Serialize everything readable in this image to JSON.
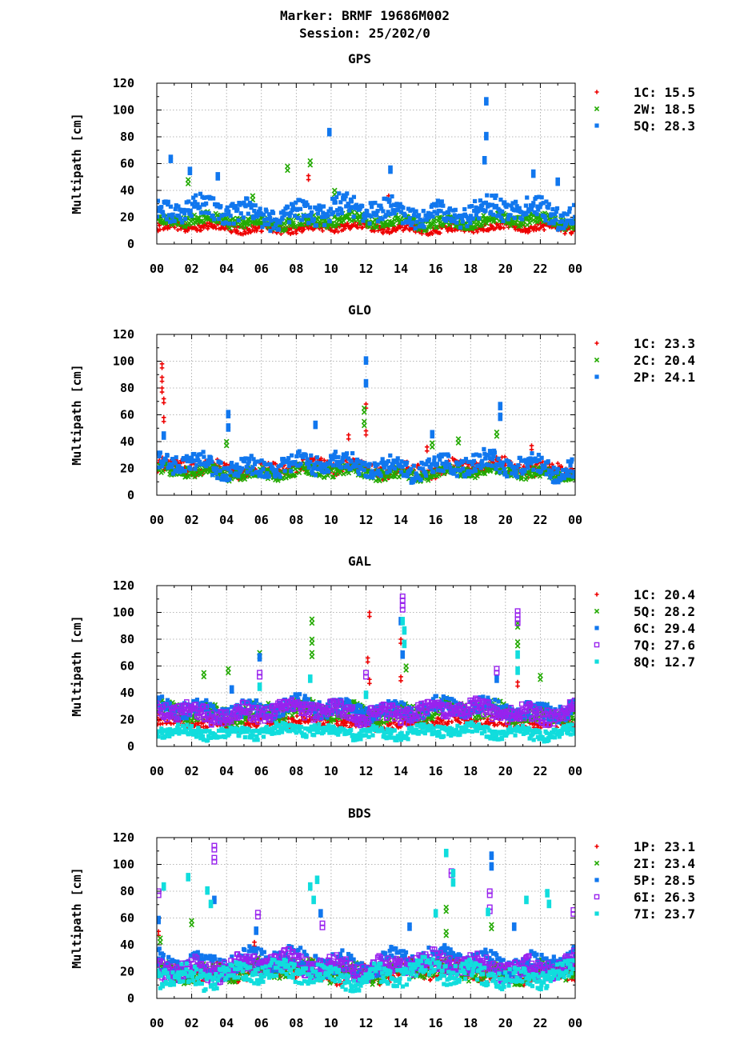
{
  "header": {
    "line1": "Marker: BRMF 19686M002",
    "line2": "Session: 25/202/0"
  },
  "colors": {
    "red": "#ee0000",
    "green": "#22aa00",
    "blue": "#1177ee",
    "purple": "#9922ee",
    "cyan": "#11dddd"
  },
  "chart_data": [
    {
      "type": "scatter",
      "title": "GPS",
      "ylabel": "Multipath [cm]",
      "xlabel": "",
      "xlim": [
        0,
        24
      ],
      "ylim": [
        0,
        120
      ],
      "x_ticks": [
        "00",
        "02",
        "04",
        "06",
        "08",
        "10",
        "12",
        "14",
        "16",
        "18",
        "20",
        "22",
        "00"
      ],
      "y_ticks": [
        "0",
        "20",
        "40",
        "60",
        "80",
        "100",
        "120"
      ],
      "grid": true,
      "legend_position": "right",
      "series": [
        {
          "name": "1C",
          "value": "15.5",
          "color": "#ee0000",
          "marker": "plus",
          "base": 12,
          "spread": 3,
          "spikes": [
            [
              8.7,
              51
            ],
            [
              13.3,
              36
            ],
            [
              1.6,
              14
            ]
          ]
        },
        {
          "name": "2W",
          "value": "18.5",
          "color": "#22aa00",
          "marker": "cross",
          "base": 17,
          "spread": 4,
          "spikes": [
            [
              7.5,
              58
            ],
            [
              8.8,
              62
            ],
            [
              10.2,
              40
            ],
            [
              5.5,
              36
            ],
            [
              1.8,
              48
            ]
          ]
        },
        {
          "name": "5Q",
          "value": "28.3",
          "color": "#1177ee",
          "marker": "square",
          "base": 24,
          "spread": 8,
          "spikes": [
            [
              0.8,
              65
            ],
            [
              9.9,
              85
            ],
            [
              18.9,
              108
            ],
            [
              18.9,
              82
            ],
            [
              18.8,
              64
            ],
            [
              13.4,
              57
            ],
            [
              1.9,
              56
            ],
            [
              3.5,
              52
            ],
            [
              21.6,
              54
            ],
            [
              23.0,
              48
            ]
          ]
        }
      ]
    },
    {
      "type": "scatter",
      "title": "GLO",
      "ylabel": "Multipath [cm]",
      "xlabel": "",
      "xlim": [
        0,
        24
      ],
      "ylim": [
        0,
        120
      ],
      "x_ticks": [
        "00",
        "02",
        "04",
        "06",
        "08",
        "10",
        "12",
        "14",
        "16",
        "18",
        "20",
        "22",
        "00"
      ],
      "y_ticks": [
        "0",
        "20",
        "40",
        "60",
        "80",
        "100",
        "120"
      ],
      "grid": true,
      "legend_position": "right",
      "series": [
        {
          "name": "1C",
          "value": "23.3",
          "color": "#ee0000",
          "marker": "plus",
          "base": 20,
          "spread": 5,
          "spikes": [
            [
              0.3,
              98
            ],
            [
              0.3,
              88
            ],
            [
              0.3,
              80
            ],
            [
              0.4,
              72
            ],
            [
              0.4,
              58
            ],
            [
              11.0,
              45
            ],
            [
              12.0,
              68
            ],
            [
              12.0,
              48
            ],
            [
              15.5,
              36
            ],
            [
              21.5,
              37
            ]
          ]
        },
        {
          "name": "2C",
          "value": "20.4",
          "color": "#22aa00",
          "marker": "cross",
          "base": 17,
          "spread": 4,
          "spikes": [
            [
              4.0,
              40
            ],
            [
              11.9,
              65
            ],
            [
              11.9,
              55
            ],
            [
              19.5,
              47
            ],
            [
              15.8,
              39
            ],
            [
              17.3,
              42
            ]
          ]
        },
        {
          "name": "2P",
          "value": "24.1",
          "color": "#1177ee",
          "marker": "square",
          "base": 22,
          "spread": 7,
          "spikes": [
            [
              0.4,
              46
            ],
            [
              4.1,
              62
            ],
            [
              4.1,
              52
            ],
            [
              9.1,
              54
            ],
            [
              12.0,
              102
            ],
            [
              12.0,
              85
            ],
            [
              15.8,
              47
            ],
            [
              19.7,
              68
            ],
            [
              19.7,
              60
            ]
          ]
        }
      ]
    },
    {
      "type": "scatter",
      "title": "GAL",
      "ylabel": "Multipath [cm]",
      "xlabel": "",
      "xlim": [
        0,
        24
      ],
      "ylim": [
        0,
        120
      ],
      "x_ticks": [
        "00",
        "02",
        "04",
        "06",
        "08",
        "10",
        "12",
        "14",
        "16",
        "18",
        "20",
        "22",
        "00"
      ],
      "y_ticks": [
        "0",
        "20",
        "40",
        "60",
        "80",
        "100",
        "120"
      ],
      "grid": true,
      "legend_position": "right",
      "series": [
        {
          "name": "1C",
          "value": "20.4",
          "color": "#ee0000",
          "marker": "plus",
          "base": 18,
          "spread": 4,
          "spikes": [
            [
              12.2,
              100
            ],
            [
              12.1,
              66
            ],
            [
              12.2,
              50
            ],
            [
              14.0,
              80
            ],
            [
              14.0,
              52
            ],
            [
              20.7,
              48
            ]
          ]
        },
        {
          "name": "5Q",
          "value": "28.2",
          "color": "#22aa00",
          "marker": "cross",
          "base": 26,
          "spread": 6,
          "spikes": [
            [
              2.7,
              55
            ],
            [
              8.9,
              95
            ],
            [
              8.9,
              80
            ],
            [
              8.9,
              70
            ],
            [
              14.3,
              60
            ],
            [
              20.7,
              92
            ],
            [
              20.7,
              78
            ],
            [
              22.0,
              53
            ],
            [
              5.9,
              70
            ],
            [
              4.1,
              58
            ]
          ]
        },
        {
          "name": "6C",
          "value": "29.4",
          "color": "#1177ee",
          "marker": "square",
          "base": 28,
          "spread": 6,
          "spikes": [
            [
              5.9,
              68
            ],
            [
              14.0,
              95
            ],
            [
              14.1,
              70
            ],
            [
              19.5,
              52
            ],
            [
              4.3,
              44
            ]
          ]
        },
        {
          "name": "7Q",
          "value": "27.6",
          "color": "#9922ee",
          "marker": "open-square",
          "base": 26,
          "spread": 6,
          "spikes": [
            [
              14.1,
              112
            ],
            [
              14.1,
              105
            ],
            [
              20.7,
              101
            ],
            [
              20.7,
              95
            ],
            [
              5.9,
              55
            ],
            [
              12.0,
              55
            ],
            [
              19.5,
              58
            ]
          ]
        },
        {
          "name": "8Q",
          "value": "12.7",
          "color": "#11dddd",
          "marker": "square",
          "base": 11,
          "spread": 4,
          "spikes": [
            [
              14.1,
              95
            ],
            [
              14.2,
              88
            ],
            [
              14.2,
              78
            ],
            [
              20.7,
              70
            ],
            [
              20.7,
              58
            ],
            [
              5.9,
              46
            ],
            [
              8.8,
              52
            ],
            [
              12.0,
              40
            ]
          ]
        }
      ]
    },
    {
      "type": "scatter",
      "title": "BDS",
      "ylabel": "Multipath [cm]",
      "xlabel": "",
      "xlim": [
        0,
        24
      ],
      "ylim": [
        0,
        120
      ],
      "x_ticks": [
        "00",
        "02",
        "04",
        "06",
        "08",
        "10",
        "12",
        "14",
        "16",
        "18",
        "20",
        "22",
        "00"
      ],
      "y_ticks": [
        "0",
        "20",
        "40",
        "60",
        "80",
        "100",
        "120"
      ],
      "grid": true,
      "legend_position": "right",
      "series": [
        {
          "name": "1P",
          "value": "23.1",
          "color": "#ee0000",
          "marker": "plus",
          "base": 20,
          "spread": 6,
          "spikes": [
            [
              0.1,
              50
            ],
            [
              5.6,
              42
            ]
          ]
        },
        {
          "name": "2I",
          "value": "23.4",
          "color": "#22aa00",
          "marker": "cross",
          "base": 21,
          "spread": 6,
          "spikes": [
            [
              16.6,
              68
            ],
            [
              16.6,
              50
            ],
            [
              19.2,
              55
            ],
            [
              0.2,
              45
            ],
            [
              2.0,
              58
            ]
          ]
        },
        {
          "name": "5P",
          "value": "28.5",
          "color": "#1177ee",
          "marker": "square",
          "base": 27,
          "spread": 8,
          "spikes": [
            [
              19.2,
              108
            ],
            [
              19.2,
              100
            ],
            [
              3.3,
              75
            ],
            [
              9.4,
              65
            ],
            [
              14.5,
              55
            ],
            [
              20.5,
              55
            ],
            [
              5.7,
              52
            ],
            [
              0.1,
              60
            ]
          ]
        },
        {
          "name": "6I",
          "value": "26.3",
          "color": "#9922ee",
          "marker": "open-square",
          "base": 24,
          "spread": 7,
          "spikes": [
            [
              3.3,
              114
            ],
            [
              3.3,
              105
            ],
            [
              0.1,
              80
            ],
            [
              5.8,
              64
            ],
            [
              16.9,
              95
            ],
            [
              19.1,
              80
            ],
            [
              19.1,
              68
            ],
            [
              23.9,
              66
            ],
            [
              9.5,
              56
            ]
          ]
        },
        {
          "name": "7I",
          "value": "23.7",
          "color": "#11dddd",
          "marker": "square",
          "base": 18,
          "spread": 7,
          "spikes": [
            [
              16.6,
              110
            ],
            [
              17.0,
              95
            ],
            [
              17.0,
              88
            ],
            [
              8.8,
              85
            ],
            [
              9.2,
              90
            ],
            [
              9.0,
              75
            ],
            [
              1.8,
              92
            ],
            [
              0.4,
              85
            ],
            [
              2.9,
              82
            ],
            [
              3.1,
              72
            ],
            [
              22.4,
              80
            ],
            [
              22.5,
              72
            ],
            [
              19.0,
              66
            ],
            [
              16.0,
              65
            ],
            [
              21.2,
              75
            ]
          ]
        }
      ]
    }
  ]
}
